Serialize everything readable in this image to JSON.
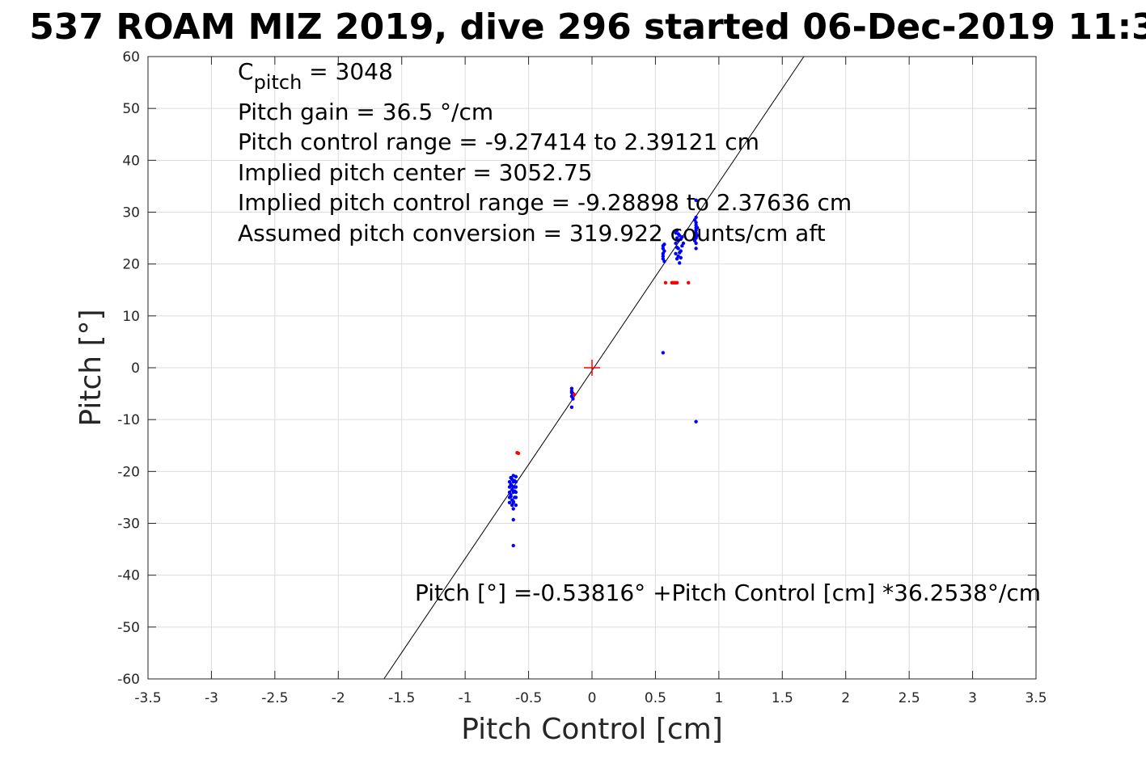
{
  "chart_data": {
    "type": "scatter",
    "title": "537 ROAM MIZ 2019, dive 296 started 06-Dec-2019 11:3",
    "xlabel": "Pitch Control [cm]",
    "ylabel": "Pitch [°]",
    "xlim": [
      -3.5,
      3.5
    ],
    "ylim": [
      -60,
      60
    ],
    "xticks": [
      -3.5,
      -3,
      -2.5,
      -2,
      -1.5,
      -1,
      -0.5,
      0,
      0.5,
      1,
      1.5,
      2,
      2.5,
      3,
      3.5
    ],
    "xtick_labels": [
      "-3.5",
      "-3",
      "-2.5",
      "-2",
      "-1.5",
      "-1",
      "-0.5",
      "0",
      "0.5",
      "1",
      "1.5",
      "2",
      "2.5",
      "3",
      "3.5"
    ],
    "yticks": [
      -60,
      -50,
      -40,
      -30,
      -20,
      -10,
      0,
      10,
      20,
      30,
      40,
      50,
      60
    ],
    "ytick_labels": [
      "-60",
      "-50",
      "-40",
      "-30",
      "-20",
      "-10",
      "0",
      "10",
      "20",
      "30",
      "40",
      "50",
      "60"
    ],
    "grid": true,
    "annotations": {
      "cpitch_base": "C",
      "cpitch_sub": "pitch",
      "cpitch_value": " = 3048",
      "lines": [
        "Pitch gain = 36.5 °/cm",
        "Pitch control range = -9.27414 to 2.39121 cm",
        "Implied pitch center = 3052.75",
        "Implied pitch control range = -9.28898 to 2.37636 cm",
        "Assumed pitch conversion = 319.922 counts/cm aft"
      ],
      "fit_equation": "Pitch [°] =-0.53816° +Pitch Control [cm] *36.2538°/cm"
    },
    "fit_line": {
      "intercept": -0.53816,
      "slope": 36.2538,
      "color": "#000000"
    },
    "center_marker": {
      "x": 0,
      "y": 0,
      "color": "#ff0000"
    },
    "series": [
      {
        "color": "#0000ff",
        "points": [
          [
            -0.63,
            -21.5
          ],
          [
            -0.62,
            -22
          ],
          [
            -0.64,
            -22.5
          ],
          [
            -0.61,
            -23
          ],
          [
            -0.63,
            -23.5
          ],
          [
            -0.62,
            -24
          ],
          [
            -0.64,
            -24.5
          ],
          [
            -0.61,
            -25
          ],
          [
            -0.63,
            -25.5
          ],
          [
            -0.62,
            -26
          ],
          [
            -0.6,
            -21
          ],
          [
            -0.6,
            -22
          ],
          [
            -0.6,
            -23
          ],
          [
            -0.6,
            -24
          ],
          [
            -0.6,
            -25
          ],
          [
            -0.65,
            -22
          ],
          [
            -0.65,
            -23
          ],
          [
            -0.65,
            -24
          ],
          [
            -0.65,
            -25
          ],
          [
            -0.65,
            -26
          ],
          [
            -0.62,
            -20.8
          ],
          [
            -0.63,
            -22.8
          ],
          [
            -0.61,
            -23.8
          ],
          [
            -0.64,
            -24.8
          ],
          [
            -0.62,
            -25.8
          ],
          [
            -0.63,
            -26.5
          ],
          [
            -0.62,
            -27.2
          ],
          [
            -0.61,
            -21.8
          ],
          [
            -0.64,
            -21.2
          ],
          [
            -0.6,
            -26.5
          ],
          [
            -0.62,
            -29.3
          ],
          [
            -0.62,
            -34.3
          ],
          [
            -0.16,
            -4
          ],
          [
            -0.16,
            -4.5
          ],
          [
            -0.15,
            -5
          ],
          [
            -0.16,
            -5.5
          ],
          [
            -0.15,
            -6
          ],
          [
            -0.16,
            -4.8
          ],
          [
            -0.15,
            -5.2
          ],
          [
            -0.16,
            -7.6
          ],
          [
            0.56,
            21
          ],
          [
            0.56,
            22
          ],
          [
            0.56,
            23
          ],
          [
            0.57,
            22.5
          ],
          [
            0.56,
            21.5
          ],
          [
            0.57,
            20.5
          ],
          [
            0.56,
            23.5
          ],
          [
            0.57,
            23.8
          ],
          [
            0.66,
            24
          ],
          [
            0.67,
            25
          ],
          [
            0.68,
            23
          ],
          [
            0.66,
            22
          ],
          [
            0.67,
            21
          ],
          [
            0.68,
            24.5
          ],
          [
            0.69,
            25.5
          ],
          [
            0.7,
            22.5
          ],
          [
            0.71,
            23.5
          ],
          [
            0.72,
            24
          ],
          [
            0.66,
            26
          ],
          [
            0.67,
            26.5
          ],
          [
            0.68,
            21.5
          ],
          [
            0.69,
            20.2
          ],
          [
            0.7,
            24.8
          ],
          [
            0.71,
            25.2
          ],
          [
            0.67,
            23.2
          ],
          [
            0.69,
            22.2
          ],
          [
            0.68,
            25.8
          ],
          [
            0.7,
            21.2
          ],
          [
            0.82,
            24
          ],
          [
            0.82,
            25
          ],
          [
            0.82,
            26
          ],
          [
            0.82,
            27
          ],
          [
            0.82,
            28
          ],
          [
            0.82,
            29
          ],
          [
            0.82,
            23
          ],
          [
            0.82,
            25.5
          ],
          [
            0.82,
            26.5
          ],
          [
            0.82,
            27.5
          ],
          [
            0.81,
            24.5
          ],
          [
            0.83,
            25.5
          ],
          [
            0.81,
            28.5
          ],
          [
            0.83,
            27
          ],
          [
            0.82,
            32.3
          ],
          [
            0.56,
            2.9
          ],
          [
            0.82,
            -10.4
          ]
        ]
      },
      {
        "color": "#ff0000",
        "points": [
          [
            -0.59,
            -16.4
          ],
          [
            -0.58,
            -16.5
          ],
          [
            -0.14,
            -5.2
          ],
          [
            0.58,
            16.4
          ],
          [
            0.63,
            16.4
          ],
          [
            0.64,
            16.4
          ],
          [
            0.65,
            16.4
          ],
          [
            0.66,
            16.4
          ],
          [
            0.67,
            16.4
          ],
          [
            0.76,
            16.4
          ]
        ]
      }
    ]
  }
}
